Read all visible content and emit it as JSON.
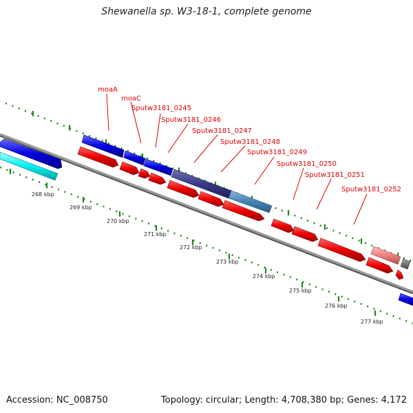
{
  "title": "Shewanella sp. W3-18-1, complete genome",
  "accession": "Accession: NC_008750",
  "summary": "Topology: circular; Length: 4,708,380 bp; Genes: 4,172",
  "colors": {
    "forward_gene": "#0f0fe6",
    "reverse_gene": "#f00000",
    "backbone": "#888888",
    "ticks": "#1a8a1a",
    "labels": "#e00000"
  },
  "kbp_labels": [
    "268 kbp",
    "269 kbp",
    "270 kbp",
    "271 kbp",
    "272 kbp",
    "273 kbp",
    "274 kbp",
    "275 kbp",
    "276 kbp",
    "277 kbp"
  ],
  "gene_labels": [
    "moaA",
    "moaC",
    "Sputw3181_0245",
    "Sputw3181_0246",
    "Sputw3181_0247",
    "Sputw3181_0248",
    "Sputw3181_0249",
    "Sputw3181_0250",
    "Sputw3181_0251",
    "Sputw3181_0252"
  ]
}
